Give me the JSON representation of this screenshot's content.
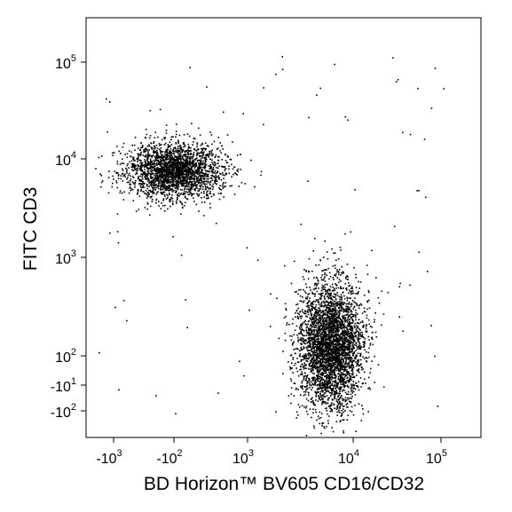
{
  "chart_data": {
    "type": "scatter",
    "title": "",
    "xlabel": "BD Horizon™ BV605 CD16/CD32",
    "ylabel": "FITC CD3",
    "x_scale": "biexponential",
    "y_scale": "biexponential",
    "grid": false,
    "legend": "none",
    "point_color": "#000000",
    "x_ticks": [
      {
        "value": -1000,
        "base": "-10",
        "exp": "3"
      },
      {
        "value": -100,
        "base": "-10",
        "exp": "2"
      },
      {
        "value": 1000,
        "base": "10",
        "exp": "3"
      },
      {
        "value": 10000,
        "base": "10",
        "exp": "4"
      },
      {
        "value": 100000,
        "base": "10",
        "exp": "5"
      }
    ],
    "y_ticks": [
      {
        "value": 100000,
        "base": "10",
        "exp": "5"
      },
      {
        "value": 10000,
        "base": "10",
        "exp": "4"
      },
      {
        "value": 1000,
        "base": "10",
        "exp": "3"
      },
      {
        "value": 100,
        "base": "10",
        "exp": "2"
      },
      {
        "value": -10,
        "base": "-10",
        "exp": "1"
      },
      {
        "value": -100,
        "base": "-10",
        "exp": "2"
      }
    ],
    "populations": [
      {
        "x_center": -100,
        "y_center": 9000,
        "x_range": [
          -1200,
          1500
        ],
        "y_range": [
          3000,
          15000
        ],
        "approx_events": 2400
      },
      {
        "x_center": 8000,
        "y_center": 200,
        "x_range": [
          3000,
          25000
        ],
        "y_range": [
          -150,
          3000
        ],
        "approx_events": 3600
      }
    ]
  }
}
